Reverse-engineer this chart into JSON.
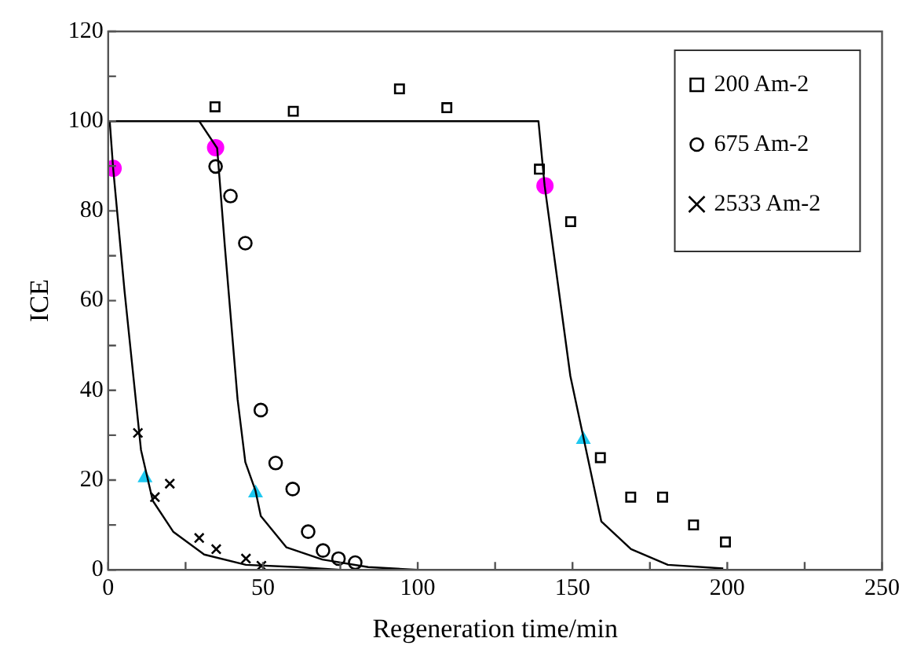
{
  "chart_data": {
    "type": "scatter",
    "xlabel": "Regeneration time/min",
    "ylabel": "ICE",
    "xlim": [
      0,
      250
    ],
    "xticks": [
      0,
      {
        "value": 25,
        "label": null
      },
      50,
      {
        "value": 75,
        "label": null
      },
      100,
      {
        "value": 125,
        "label": null
      },
      150,
      {
        "value": 175,
        "label": null
      },
      200,
      {
        "value": 225,
        "label": null
      },
      250
    ],
    "ylim": [
      0,
      120
    ],
    "yticks": [
      0,
      {
        "value": 10,
        "label": null
      },
      20,
      {
        "value": 30,
        "label": null
      },
      40,
      {
        "value": 50,
        "label": null
      },
      60,
      {
        "value": 70,
        "label": null
      },
      80,
      {
        "value": 90,
        "label": null
      },
      100,
      {
        "value": 110,
        "label": null
      },
      120
    ],
    "legend": "top right",
    "grid": false,
    "series": [
      {
        "type": "line",
        "marker": "none",
        "color": "#000000",
        "x": [
          0,
          0.5,
          1.6,
          5.3,
          10.6,
          14.4,
          21,
          31,
          44.5,
          61,
          75
        ],
        "values": [
          100,
          100,
          89.5,
          62,
          26.7,
          15.4,
          8.5,
          3.4,
          1.1,
          0.6,
          0
        ]
      },
      {
        "type": "line",
        "marker": "none",
        "color": "#000000",
        "x": [
          29.4,
          35.2,
          37.7,
          41.8,
          44.3,
          47.6,
          49.3,
          57.6,
          69.2,
          84,
          100
        ],
        "values": [
          100,
          94,
          72,
          38,
          24,
          17.6,
          12,
          5,
          2.3,
          0.6,
          0
        ]
      },
      {
        "type": "line",
        "marker": "none",
        "color": "#000000",
        "x": [
          0,
          139,
          141,
          149.3,
          153.5,
          159.3,
          168.9,
          180.8,
          198.7
        ],
        "values": [
          100,
          100,
          85.6,
          43.2,
          29.6,
          10.8,
          4.6,
          1.1,
          0.3
        ]
      },
      {
        "name": "200 Am-2",
        "type": "scatter",
        "marker": "square",
        "color": "#000000",
        "x": [
          34.5,
          59.8,
          94.1,
          109.4,
          139.3,
          149.4,
          159.0,
          168.8,
          179.1,
          189.1,
          199.4
        ],
        "values": [
          103.2,
          102.2,
          107.2,
          103.0,
          89.3,
          77.6,
          25.0,
          16.2,
          16.2,
          10.0,
          6.2
        ]
      },
      {
        "name": "675 Am-2",
        "type": "scatter",
        "marker": "circle",
        "color": "#000000",
        "x": [
          34.7,
          39.5,
          44.3,
          49.3,
          54.1,
          59.6,
          64.6,
          69.4,
          74.4,
          79.8
        ],
        "values": [
          89.9,
          83.3,
          72.8,
          35.6,
          23.8,
          18.0,
          8.5,
          4.3,
          2.5,
          1.6
        ]
      },
      {
        "name": "2533 Am-2",
        "type": "scatter",
        "marker": "cross",
        "color": "#000000",
        "x": [
          9.6,
          15.1,
          19.9,
          29.4,
          34.9,
          44.5,
          49.5
        ],
        "values": [
          30.5,
          16.2,
          19.2,
          7.1,
          4.6,
          2.5,
          0.9
        ]
      },
      {
        "type": "scatter",
        "marker": "circle",
        "color": "#ff00ff",
        "x": [
          1.6,
          34.7,
          141.1
        ],
        "values": [
          89.5,
          94.1,
          85.6
        ]
      },
      {
        "type": "scatter",
        "marker": "triangle",
        "color": "#1ec8f0",
        "x": [
          11.9,
          47.6,
          153.5
        ],
        "values": [
          20.5,
          17.1,
          29.0
        ]
      }
    ]
  }
}
